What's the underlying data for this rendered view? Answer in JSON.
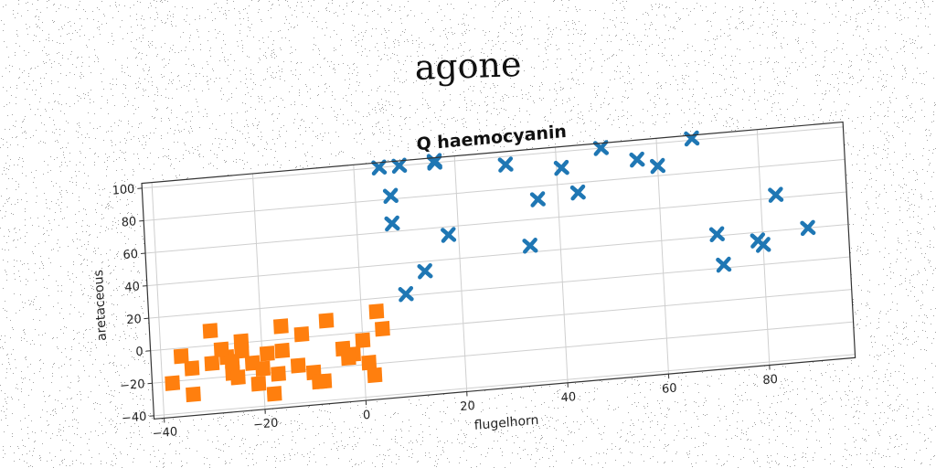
{
  "suptitle": "agone",
  "chart_data": {
    "type": "scatter",
    "title": "Q haemocyanin",
    "xlabel": "flugelhorn",
    "ylabel": "aretaceous",
    "xlim": [
      -42,
      97
    ],
    "ylim": [
      -42,
      103
    ],
    "xticks": [
      -40,
      -20,
      0,
      20,
      40,
      60,
      80
    ],
    "yticks": [
      -40,
      -20,
      0,
      20,
      40,
      60,
      80,
      100
    ],
    "grid": true,
    "series": [
      {
        "marker": "x",
        "color": "#1f77b4",
        "x": [
          5,
          9,
          16,
          30,
          7,
          41,
          49,
          67,
          56,
          7,
          36,
          60,
          44,
          18,
          34,
          13,
          9,
          72,
          71,
          83,
          80,
          79,
          89,
          16
        ],
        "y": [
          100,
          100,
          101,
          95,
          82,
          90,
          100,
          101,
          91,
          65,
          72,
          86,
          74,
          55,
          44,
          34,
          21,
          22,
          41,
          62,
          32,
          35,
          40,
          100
        ]
      },
      {
        "marker": "s",
        "color": "#ff7f0e",
        "x": [
          -30,
          -36,
          -27,
          -24,
          -16,
          -7,
          3,
          -38,
          -34,
          -30,
          -26,
          -21,
          -18,
          -13,
          -10,
          -4,
          0,
          -24,
          -19,
          -28,
          -22,
          -16,
          -12,
          -8,
          -2,
          1,
          4,
          -34,
          -25,
          -20,
          -17,
          -9,
          2,
          -26,
          -3
        ],
        "y": [
          9,
          -5,
          -8,
          1,
          8,
          9,
          12,
          -21,
          -29,
          -11,
          -18,
          -26,
          -33,
          -17,
          -22,
          -9,
          -5,
          -5,
          -8,
          -3,
          -13,
          -7,
          2,
          -28,
          -13,
          -19,
          1,
          -13,
          -21,
          -17,
          -21,
          -28,
          -27,
          -11,
          -15
        ]
      }
    ]
  }
}
